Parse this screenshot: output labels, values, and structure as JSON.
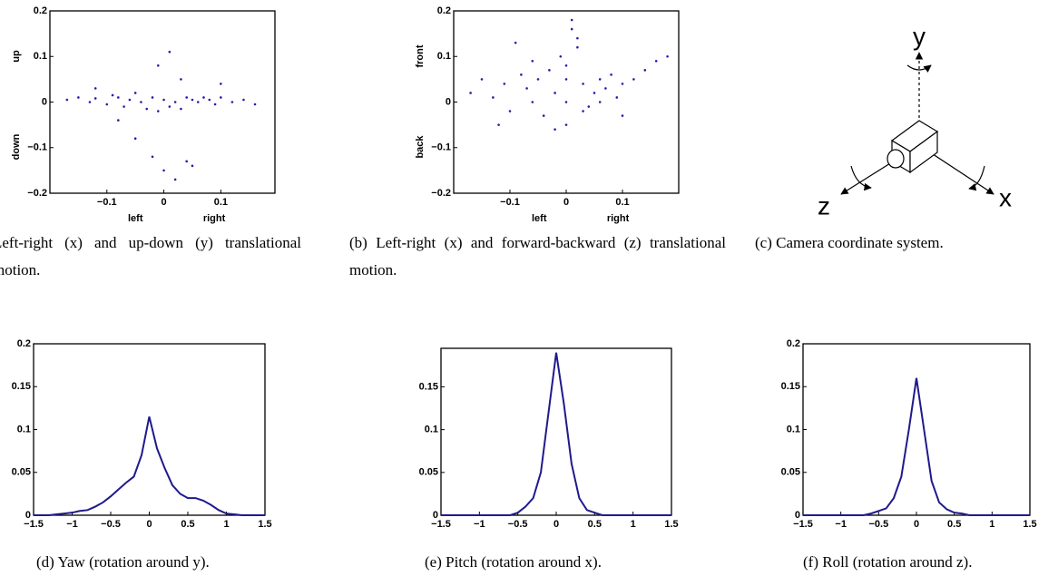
{
  "chart_data": [
    {
      "type": "scatter",
      "caption": "Left-right (x) and up-down (y) translational motion.",
      "x_labels": [
        "left",
        "right"
      ],
      "y_labels": [
        "up",
        "down"
      ],
      "color": "#2b1ba8",
      "x": [
        -0.17,
        -0.15,
        -0.13,
        -0.12,
        -0.1,
        -0.09,
        -0.08,
        -0.07,
        -0.06,
        -0.05,
        -0.04,
        -0.03,
        -0.02,
        -0.01,
        0,
        0.01,
        0.02,
        0.03,
        0.04,
        0.05,
        0.06,
        0.07,
        0.08,
        0.09,
        0.1,
        0.12,
        0.14,
        0.16,
        -0.05,
        -0.02,
        0,
        0.02,
        0.04,
        0.05,
        0.03,
        -0.01,
        0.01,
        -0.08,
        0.1,
        -0.12
      ],
      "values": [
        0.005,
        0.01,
        0,
        0.008,
        -0.005,
        0.015,
        0.01,
        -0.01,
        0.005,
        0.02,
        0,
        -0.015,
        0.01,
        -0.02,
        0.005,
        -0.01,
        0,
        -0.015,
        0.01,
        0.005,
        0,
        0.01,
        0.005,
        -0.005,
        0.01,
        0,
        0.005,
        -0.005,
        -0.08,
        -0.12,
        -0.15,
        -0.17,
        -0.13,
        -0.14,
        0.05,
        0.08,
        0.11,
        -0.04,
        0.04,
        0.03
      ],
      "xlim": [
        -0.2,
        0.195
      ],
      "ylim": [
        -0.2,
        0.2
      ],
      "xticks": [
        {
          "value": -0.1,
          "label": "−0.1"
        },
        0,
        0.1
      ],
      "yticks": [
        {
          "value": -0.2,
          "label": "−0.2"
        },
        {
          "value": -0.1,
          "label": "−0.1"
        },
        0,
        0.1,
        0.2
      ]
    },
    {
      "type": "scatter",
      "caption": "(b) Left-right (x) and forward-backward (z) translational motion.",
      "x_labels": [
        "left",
        "right"
      ],
      "y_labels": [
        "front",
        "back"
      ],
      "color": "#2b1ba8",
      "x": [
        -0.17,
        -0.15,
        -0.13,
        -0.11,
        -0.1,
        -0.08,
        -0.07,
        -0.06,
        -0.05,
        -0.04,
        -0.03,
        -0.02,
        -0.01,
        0,
        0,
        0,
        0.01,
        0.02,
        0.03,
        0.04,
        0.05,
        0.06,
        0.07,
        0.08,
        0.09,
        0.1,
        0.12,
        0.14,
        0.16,
        0.18,
        -0.02,
        0,
        0.01,
        0.02,
        -0.06,
        0.03,
        -0.12,
        0.1,
        -0.09,
        0.06
      ],
      "values": [
        0.02,
        0.05,
        0.01,
        0.04,
        -0.02,
        0.06,
        0.03,
        0,
        0.05,
        -0.03,
        0.07,
        0.02,
        0.1,
        0.05,
        0.08,
        0,
        0.16,
        0.12,
        0.04,
        -0.01,
        0.02,
        0.05,
        0.03,
        0.06,
        0.01,
        0.04,
        0.05,
        0.07,
        0.09,
        0.1,
        -0.06,
        -0.05,
        0.18,
        0.14,
        0.09,
        -0.02,
        -0.05,
        -0.03,
        0.13,
        0
      ],
      "xlim": [
        -0.2,
        0.2
      ],
      "ylim": [
        -0.2,
        0.2
      ],
      "xticks": [
        {
          "value": -0.1,
          "label": "−0.1"
        },
        0,
        0.1
      ],
      "yticks": [
        {
          "value": -0.2,
          "label": "−0.2"
        },
        {
          "value": -0.1,
          "label": "−0.1"
        },
        0,
        0.1,
        0.2
      ]
    },
    {
      "type": "line",
      "caption": "(d) Yaw (rotation around y).",
      "color": "#1f1a8c",
      "x": [
        -1.5,
        -1.4,
        -1.3,
        -1.2,
        -1.1,
        -1,
        -0.9,
        -0.8,
        -0.7,
        -0.6,
        -0.5,
        -0.4,
        -0.3,
        -0.2,
        -0.1,
        0,
        0.1,
        0.2,
        0.3,
        0.4,
        0.5,
        0.6,
        0.7,
        0.8,
        0.9,
        1,
        1.1,
        1.2,
        1.3,
        1.4,
        1.5
      ],
      "values": [
        0,
        0,
        0,
        0.001,
        0.002,
        0.003,
        0.005,
        0.006,
        0.01,
        0.015,
        0.022,
        0.03,
        0.038,
        0.045,
        0.07,
        0.115,
        0.078,
        0.055,
        0.035,
        0.025,
        0.02,
        0.02,
        0.017,
        0.012,
        0.006,
        0.002,
        0.001,
        0,
        0,
        0,
        0
      ],
      "xlim": [
        -1.5,
        1.5
      ],
      "ylim": [
        0,
        0.2
      ],
      "xticks": [
        {
          "value": -1.5,
          "label": "−1.5"
        },
        {
          "value": -1,
          "label": "−1"
        },
        {
          "value": -0.5,
          "label": "−0.5"
        },
        0,
        0.5,
        1,
        1.5
      ],
      "yticks": [
        0,
        0.05,
        0.1,
        0.15,
        0.2
      ]
    },
    {
      "type": "line",
      "caption": "(e) Pitch (rotation around x).",
      "color": "#1f1a8c",
      "x": [
        -1.5,
        -1.4,
        -1.3,
        -1.2,
        -1.1,
        -1,
        -0.9,
        -0.8,
        -0.7,
        -0.6,
        -0.5,
        -0.4,
        -0.3,
        -0.2,
        -0.1,
        0,
        0.1,
        0.2,
        0.3,
        0.4,
        0.5,
        0.6,
        0.7,
        0.8,
        0.9,
        1,
        1.1,
        1.2,
        1.3,
        1.4,
        1.5
      ],
      "values": [
        0,
        0,
        0,
        0,
        0,
        0,
        0,
        0,
        0,
        0,
        0.003,
        0.01,
        0.02,
        0.05,
        0.12,
        0.19,
        0.13,
        0.06,
        0.02,
        0.006,
        0.003,
        0,
        0,
        0,
        0,
        0,
        0,
        0,
        0,
        0,
        0
      ],
      "xlim": [
        -1.5,
        1.5
      ],
      "ylim": [
        0,
        0.195
      ],
      "xticks": [
        {
          "value": -1.5,
          "label": "−1.5"
        },
        {
          "value": -1,
          "label": "−1"
        },
        {
          "value": -0.5,
          "label": "−0.5"
        },
        0,
        0.5,
        1,
        1.5
      ],
      "yticks": [
        0,
        0.05,
        0.1,
        0.15
      ]
    },
    {
      "type": "line",
      "caption": "(f) Roll (rotation around z).",
      "color": "#1f1a8c",
      "x": [
        -1.5,
        -1.4,
        -1.3,
        -1.2,
        -1.1,
        -1,
        -0.9,
        -0.8,
        -0.7,
        -0.6,
        -0.5,
        -0.4,
        -0.3,
        -0.2,
        -0.1,
        0,
        0.1,
        0.2,
        0.3,
        0.4,
        0.5,
        0.6,
        0.7,
        0.8,
        0.9,
        1,
        1.1,
        1.2,
        1.3,
        1.4,
        1.5
      ],
      "values": [
        0,
        0,
        0,
        0,
        0,
        0,
        0,
        0,
        0,
        0.002,
        0.005,
        0.008,
        0.02,
        0.045,
        0.1,
        0.16,
        0.1,
        0.04,
        0.015,
        0.007,
        0.003,
        0.002,
        0,
        0,
        0,
        0,
        0,
        0,
        0,
        0,
        0
      ],
      "xlim": [
        -1.5,
        1.5
      ],
      "ylim": [
        0,
        0.2
      ],
      "xticks": [
        {
          "value": -1.5,
          "label": "−1.5"
        },
        {
          "value": -1,
          "label": "−1"
        },
        {
          "value": -0.5,
          "label": "−0.5"
        },
        0,
        0.5,
        1,
        1.5
      ],
      "yticks": [
        0,
        0.05,
        0.1,
        0.15,
        0.2
      ]
    }
  ],
  "diagram": {
    "caption": "(c) Camera coordinate system.",
    "axes": [
      "y",
      "z",
      "x"
    ]
  }
}
